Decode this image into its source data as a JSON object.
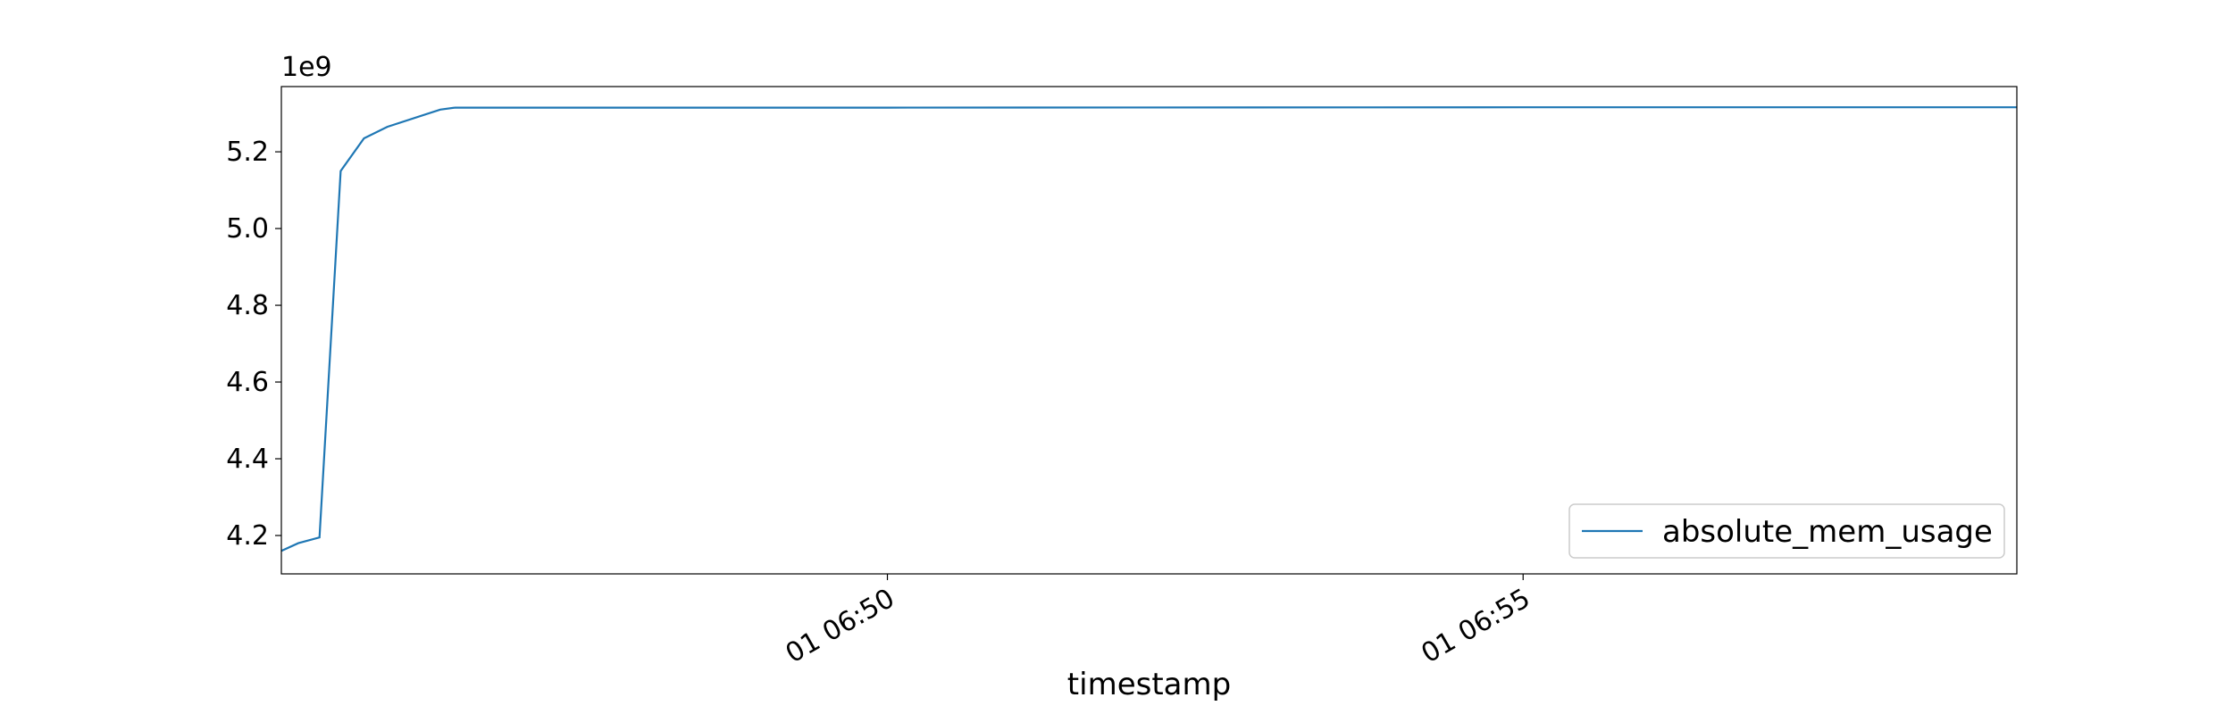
{
  "chart_data": {
    "type": "line",
    "xlabel": "timestamp",
    "ylabel": "",
    "offset_label": "1e9",
    "x_ticks": [
      "01 06:50",
      "01 06:55"
    ],
    "y_ticks": [
      "4.2",
      "4.4",
      "4.6",
      "4.8",
      "5.0",
      "5.2"
    ],
    "y_tick_values": [
      4.2,
      4.4,
      4.6,
      4.8,
      5.0,
      5.2
    ],
    "xlim": [
      "01 06:45:14",
      "01 06:58:53"
    ],
    "ylim": [
      4.1,
      5.37
    ],
    "grid": false,
    "legend_position": "lower-right",
    "series": [
      {
        "name": "absolute_mem_usage",
        "color": "#1f77b4",
        "x": [
          "01 06:45:14",
          "01 06:45:22",
          "01 06:45:32",
          "01 06:45:42",
          "01 06:45:53",
          "01 06:46:04",
          "01 06:46:29",
          "01 06:46:36",
          "01 06:47:00",
          "01 06:50:00",
          "01 06:55:00",
          "01 06:58:53"
        ],
        "values": [
          4.16,
          4.18,
          4.195,
          5.15,
          5.235,
          5.265,
          5.31,
          5.315,
          5.315,
          5.315,
          5.316,
          5.316
        ]
      }
    ]
  }
}
